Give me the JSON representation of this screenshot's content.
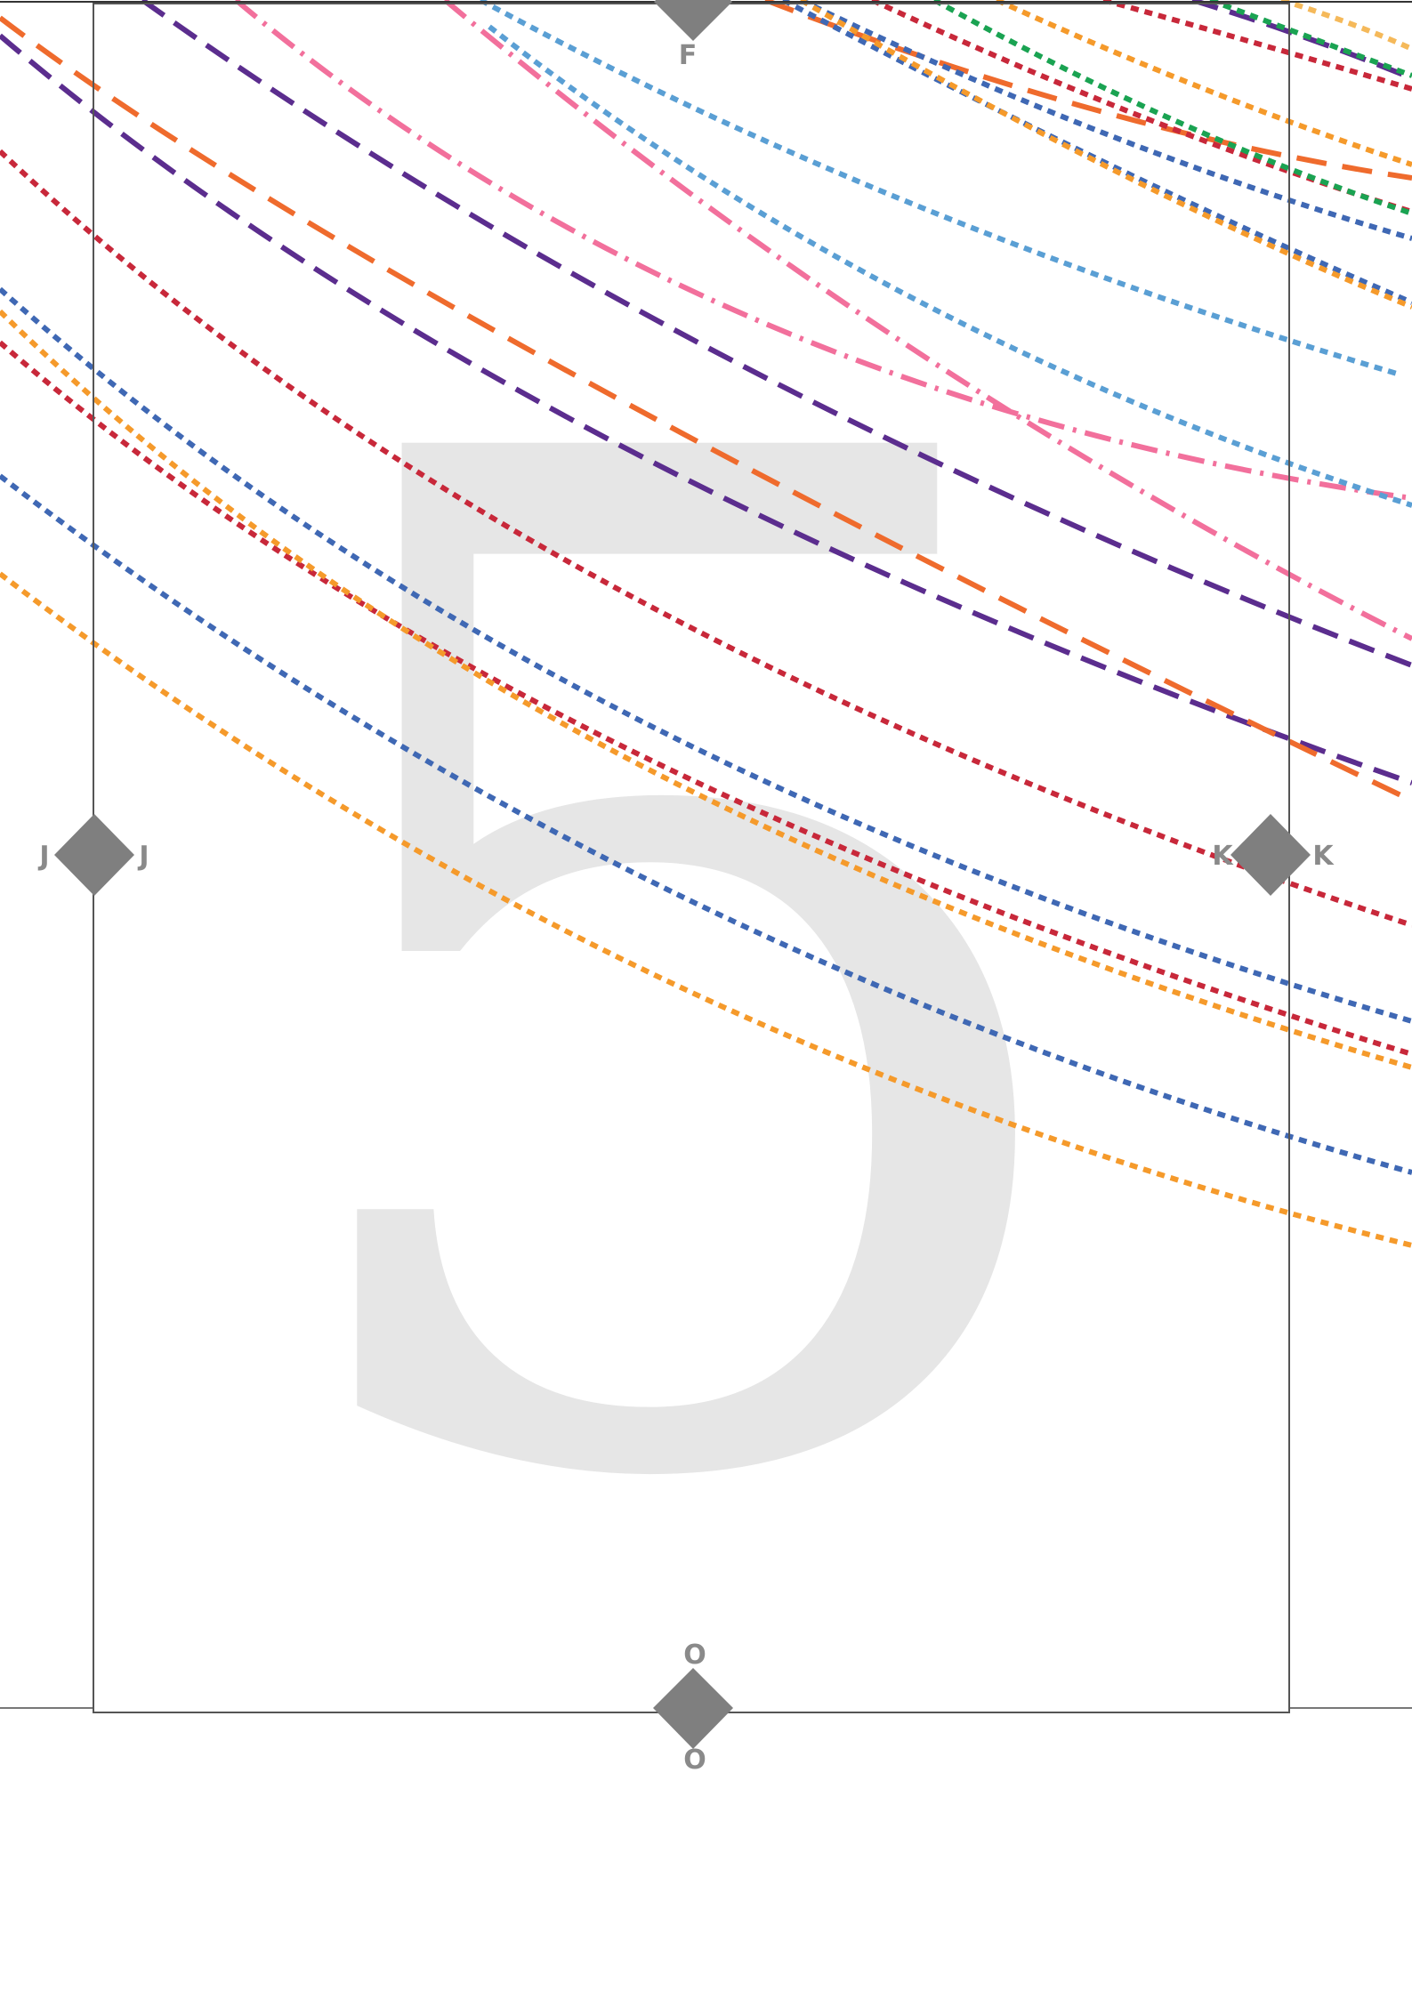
{
  "page": {
    "number": "5",
    "watermark_color": "#e6e6e6",
    "frame_color": "#555555",
    "marker_color": "#7f7f7f",
    "label_color": "#8a8a8a"
  },
  "markers": [
    {
      "id": "F",
      "labels": [
        "F"
      ],
      "icon": "diamond-icon"
    },
    {
      "id": "J",
      "labels": [
        "J",
        "J"
      ],
      "icon": "diamond-icon"
    },
    {
      "id": "K",
      "labels": [
        "K",
        "K"
      ],
      "icon": "diamond-icon"
    },
    {
      "id": "O",
      "labels": [
        "O",
        "O"
      ],
      "icon": "diamond-icon"
    }
  ],
  "curves": [
    {
      "color": "#f2709c",
      "style": "dash-dot"
    },
    {
      "color": "#f2709c",
      "style": "dash-dot"
    },
    {
      "color": "#5a9fd4",
      "style": "dotted"
    },
    {
      "color": "#5a9fd4",
      "style": "dotted"
    },
    {
      "color": "#5b2d8e",
      "style": "dashed"
    },
    {
      "color": "#5b2d8e",
      "style": "dashed"
    },
    {
      "color": "#5b2d8e",
      "style": "dashed"
    },
    {
      "color": "#ef6b2d",
      "style": "long-dash"
    },
    {
      "color": "#ef6b2d",
      "style": "long-dash"
    },
    {
      "color": "#c8283a",
      "style": "dotted"
    },
    {
      "color": "#c8283a",
      "style": "dotted"
    },
    {
      "color": "#c8283a",
      "style": "dotted"
    },
    {
      "color": "#c8283a",
      "style": "dotted"
    },
    {
      "color": "#3f68b4",
      "style": "dotted"
    },
    {
      "color": "#3f68b4",
      "style": "dotted"
    },
    {
      "color": "#3f68b4",
      "style": "dotted"
    },
    {
      "color": "#3f68b4",
      "style": "dotted"
    },
    {
      "color": "#f59a2b",
      "style": "dotted"
    },
    {
      "color": "#f59a2b",
      "style": "dotted"
    },
    {
      "color": "#f59a2b",
      "style": "dotted"
    },
    {
      "color": "#f59a2b",
      "style": "dotted"
    },
    {
      "color": "#1aa352",
      "style": "dotted"
    },
    {
      "color": "#1aa352",
      "style": "dotted"
    },
    {
      "color": "#f5b95a",
      "style": "dotted"
    }
  ]
}
